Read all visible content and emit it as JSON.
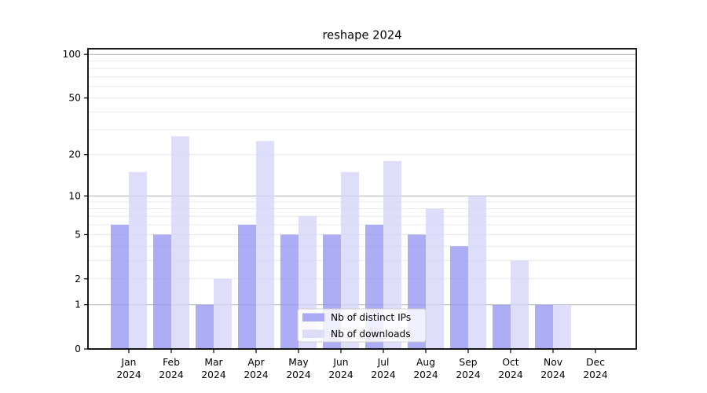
{
  "title": "reshape 2024",
  "legend": {
    "ips_label": "Nb of distinct IPs",
    "downloads_label": "Nb of downloads"
  },
  "colors": {
    "ips_bar": "#aaaaf4",
    "downloads_bar": "#dcdcf9",
    "ips_bar_fill": "rgba(152,152,243,0.8)",
    "downloads_bar_fill": "rgba(214,214,250,0.8)",
    "grid_major": "#b0b0b0",
    "grid_minor": "#e8e8e8",
    "axis": "#000000",
    "legend_border": "#cfcfcf",
    "legend_background": "rgba(255,255,255,0.8)"
  },
  "chart_data": {
    "type": "bar",
    "title": "reshape 2024",
    "categories": [
      "Jan",
      "Feb",
      "Mar",
      "Apr",
      "May",
      "Jun",
      "Jul",
      "Aug",
      "Sep",
      "Oct",
      "Nov",
      "Dec"
    ],
    "year_label": "2024",
    "series": [
      {
        "name": "Nb of distinct IPs",
        "values": [
          6,
          5,
          1,
          6,
          5,
          5,
          6,
          5,
          4,
          1,
          1,
          0
        ]
      },
      {
        "name": "Nb of downloads",
        "values": [
          15,
          27,
          2,
          25,
          7,
          15,
          18,
          8,
          10,
          3,
          1,
          0
        ]
      }
    ],
    "yticks": [
      0,
      1,
      2,
      5,
      10,
      20,
      50,
      100
    ],
    "ylim": [
      0,
      110
    ],
    "yscale": "symlog: y ~ log10(value+1)",
    "grid": "horizontal, minor at 2-9 and 20-90, major at 1/10/100",
    "legend_position": "lower center",
    "xlabel": "",
    "ylabel": ""
  }
}
